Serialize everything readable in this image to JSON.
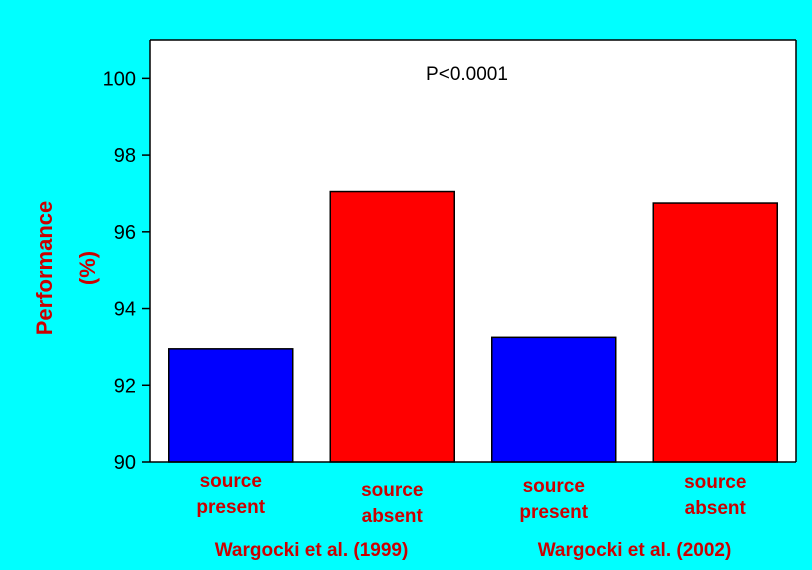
{
  "colors": {
    "background": "#00FFFF",
    "plot_background": "#FFFFFF",
    "source_present": "#0000FF",
    "source_absent": "#FF0000",
    "label_text": "#CC0000",
    "axis": "#000000"
  },
  "chart_data": {
    "type": "bar",
    "categories": [
      "source\npresent",
      "source\nabsent",
      "source\npresent",
      "source\nabsent"
    ],
    "category_lines": [
      [
        "source",
        "present"
      ],
      [
        "source",
        "absent"
      ],
      [
        "source",
        "present"
      ],
      [
        "source",
        "absent"
      ]
    ],
    "values": [
      92.95,
      97.05,
      93.25,
      96.75
    ],
    "bar_colors": [
      "#0000FF",
      "#FF0000",
      "#0000FF",
      "#FF0000"
    ],
    "groups": [
      "Wargocki et al. (1999)",
      "Wargocki et al. (2002)"
    ],
    "title": "",
    "annotation": "P<0.0001",
    "xlabel": "",
    "ylabel_lines": [
      "Performance",
      "(%)"
    ],
    "ylim": [
      90,
      101
    ],
    "yticks": [
      90,
      92,
      94,
      96,
      98,
      100
    ],
    "grid": false,
    "legend": "none"
  }
}
